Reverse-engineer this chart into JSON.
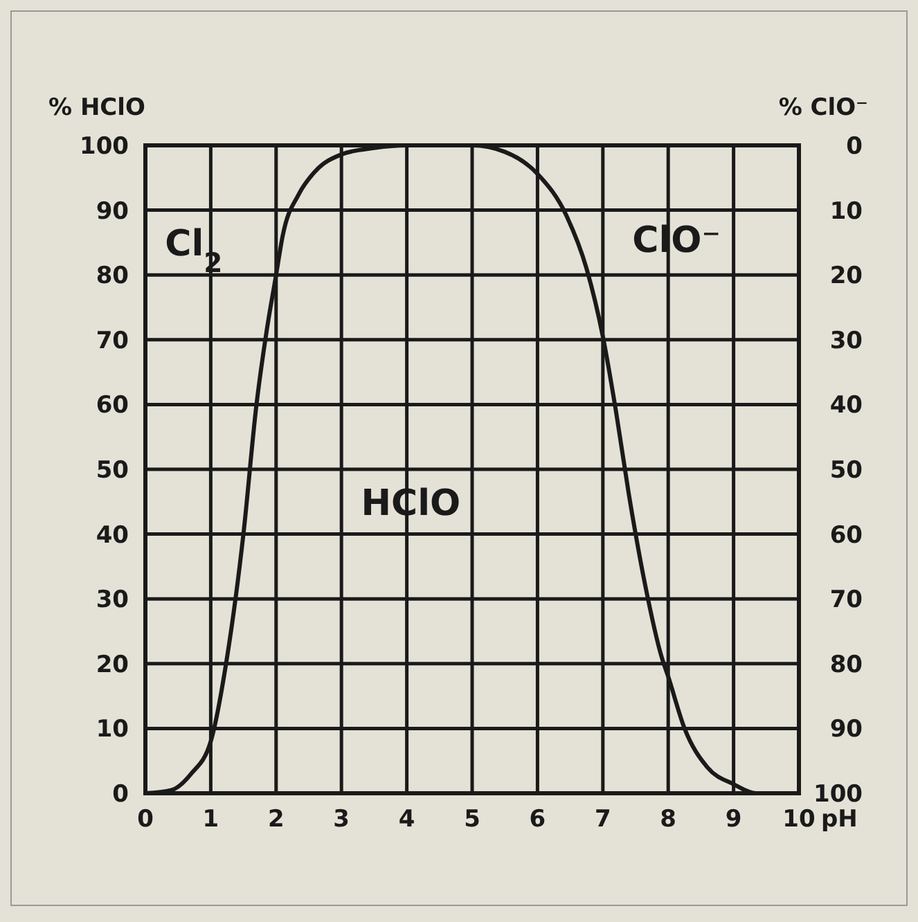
{
  "chart_data": {
    "type": "line",
    "xlabel": "pH",
    "ylabel": "% HClO",
    "y2label": "% ClO⁻",
    "x": [
      0,
      0.4,
      0.7,
      1,
      1.25,
      1.5,
      1.7,
      1.85,
      2,
      2.1,
      2.35,
      2.6,
      3,
      3.5,
      4,
      4.5,
      5,
      5.5,
      6,
      6.45,
      6.75,
      7,
      7.2,
      7.4,
      7.65,
      7.9,
      8,
      8.25,
      8.6,
      9,
      9.35,
      10
    ],
    "series": [
      {
        "color": "#1a1a1a",
        "values": [
          0,
          0.5,
          3,
          8,
          21,
          40,
          60,
          71,
          80,
          86,
          92.5,
          96,
          98.6,
          99.6,
          100,
          100,
          100,
          99,
          95.6,
          89,
          81,
          70.5,
          59,
          46,
          32,
          21,
          18,
          10,
          4,
          1.4,
          0,
          0
        ]
      }
    ],
    "xlim": [
      0,
      10
    ],
    "xticks": [
      0,
      1,
      2,
      3,
      4,
      5,
      6,
      7,
      8,
      9,
      10
    ],
    "ylim": [
      0,
      100
    ],
    "yticks": [
      0,
      10,
      20,
      30,
      40,
      50,
      60,
      70,
      80,
      90,
      100
    ],
    "y2lim": [
      100,
      0
    ],
    "y2ticks": [
      0,
      10,
      20,
      30,
      40,
      50,
      60,
      70,
      80,
      90,
      100
    ],
    "grid": true,
    "line_style": "solid",
    "marker": "none",
    "annotations": [
      "Cl$_{2}$",
      "HClO",
      "ClO⁻"
    ]
  }
}
